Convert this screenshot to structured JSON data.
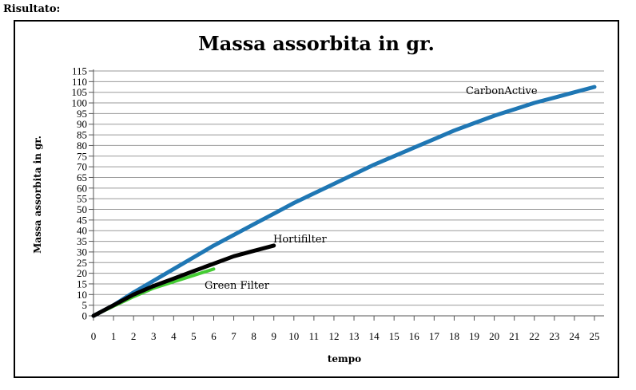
{
  "page": {
    "heading": "Risultato:"
  },
  "chart_data": {
    "type": "line",
    "title": "Massa assorbita in gr.",
    "xlabel": "tempo",
    "ylabel": "Massa assorbita in gr.",
    "xlim": [
      0,
      25
    ],
    "ylim": [
      0,
      115
    ],
    "x_ticks": [
      0,
      1,
      2,
      3,
      4,
      5,
      6,
      7,
      8,
      9,
      10,
      11,
      12,
      13,
      14,
      15,
      16,
      17,
      18,
      19,
      20,
      21,
      22,
      23,
      24,
      25
    ],
    "y_ticks": [
      0,
      5,
      10,
      15,
      20,
      25,
      30,
      35,
      40,
      45,
      50,
      55,
      60,
      65,
      70,
      75,
      80,
      85,
      90,
      95,
      100,
      105,
      110,
      115
    ],
    "grid": true,
    "series": [
      {
        "name": "CarbonActive",
        "color": "#1f77b4",
        "x": [
          0,
          1,
          2,
          3,
          4,
          5,
          6,
          7,
          8,
          9,
          10,
          11,
          12,
          13,
          14,
          15,
          16,
          17,
          18,
          19,
          20,
          21,
          22,
          23,
          24,
          25
        ],
        "y": [
          0,
          5,
          11,
          16.5,
          22,
          27.5,
          33,
          38,
          43,
          48,
          53,
          57.5,
          62,
          66.5,
          71,
          75,
          79,
          83,
          87,
          90.5,
          94,
          97,
          100,
          102.5,
          105,
          107.5
        ]
      },
      {
        "name": "Hortifilter",
        "color": "#000000",
        "x": [
          0,
          1,
          2,
          3,
          4,
          5,
          6,
          7,
          8,
          9
        ],
        "y": [
          0,
          5,
          10,
          14,
          17.5,
          21,
          24.5,
          28,
          30.5,
          33
        ]
      },
      {
        "name": "Green Filter",
        "color": "#44cc33",
        "x": [
          0,
          1,
          2,
          3,
          4,
          5,
          6
        ],
        "y": [
          0,
          4.5,
          9,
          13,
          16,
          19,
          22
        ]
      }
    ]
  }
}
